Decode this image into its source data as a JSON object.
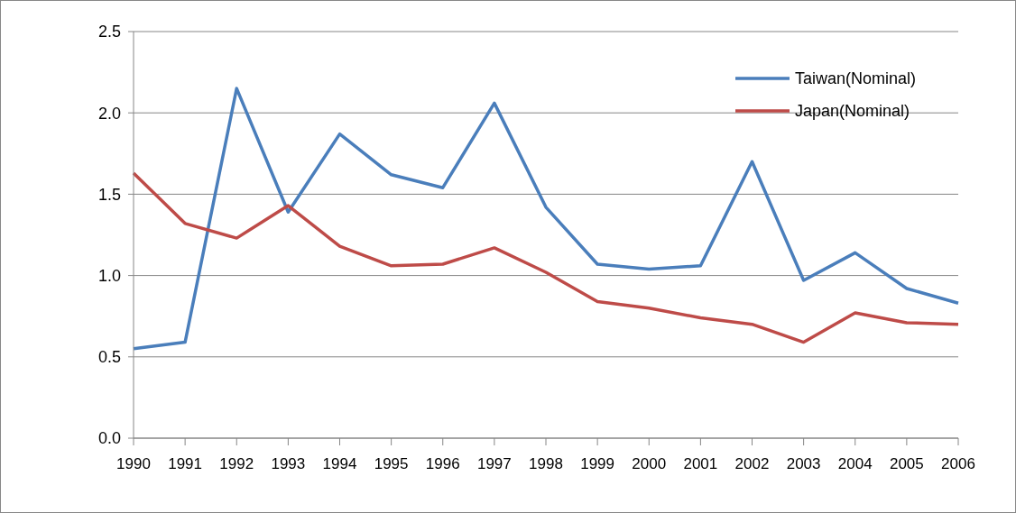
{
  "chart_data": {
    "type": "line",
    "categories": [
      "1990",
      "1991",
      "1992",
      "1993",
      "1994",
      "1995",
      "1996",
      "1997",
      "1998",
      "1999",
      "2000",
      "2001",
      "2002",
      "2003",
      "2004",
      "2005",
      "2006"
    ],
    "series": [
      {
        "name": "Taiwan(Nominal)",
        "color": "#4a7ebb",
        "values": [
          0.55,
          0.59,
          2.15,
          1.39,
          1.87,
          1.62,
          1.54,
          2.06,
          1.42,
          1.07,
          1.04,
          1.06,
          1.7,
          0.97,
          1.14,
          0.92,
          0.83
        ]
      },
      {
        "name": "Japan(Nominal)",
        "color": "#be4b48",
        "values": [
          1.63,
          1.32,
          1.23,
          1.43,
          1.18,
          1.06,
          1.07,
          1.17,
          1.02,
          0.84,
          0.8,
          0.74,
          0.7,
          0.59,
          0.77,
          0.71,
          0.7
        ]
      }
    ],
    "ylim": [
      0,
      2.5
    ],
    "yticks": [
      {
        "value": 0,
        "label": "0.0"
      },
      {
        "value": 0.5,
        "label": "0.5"
      },
      {
        "value": 1,
        "label": "1.0"
      },
      {
        "value": 1.5,
        "label": "1.5"
      },
      {
        "value": 2,
        "label": "2.0"
      },
      {
        "value": 2.5,
        "label": "2.5"
      }
    ],
    "grid": "y",
    "legend": "top right",
    "marker": "none",
    "line_style": "solid"
  }
}
